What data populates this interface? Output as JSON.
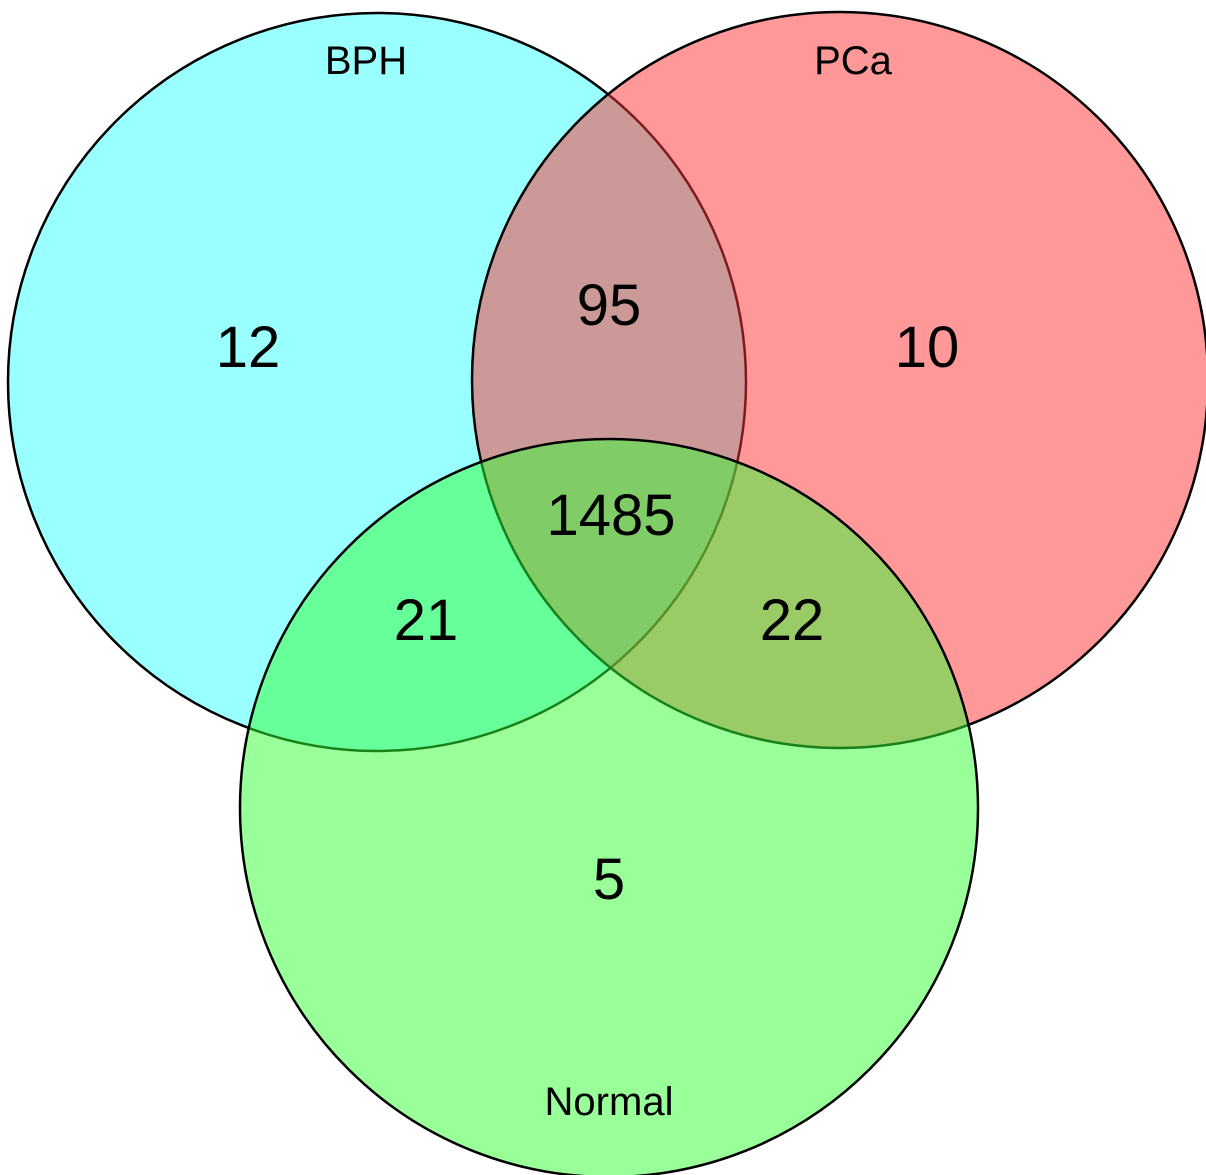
{
  "diagram": {
    "type": "venn-3",
    "sets": [
      {
        "id": "bph",
        "label": "BPH",
        "color": "#00ffff"
      },
      {
        "id": "pca",
        "label": "PCa",
        "color": "#ff3333"
      },
      {
        "id": "normal",
        "label": "Normal",
        "color": "#33ff33"
      }
    ],
    "regions": {
      "bph_only": "12",
      "pca_only": "10",
      "normal_only": "5",
      "bph_pca": "95",
      "bph_normal": "21",
      "pca_normal": "22",
      "all_three": "1485"
    }
  }
}
